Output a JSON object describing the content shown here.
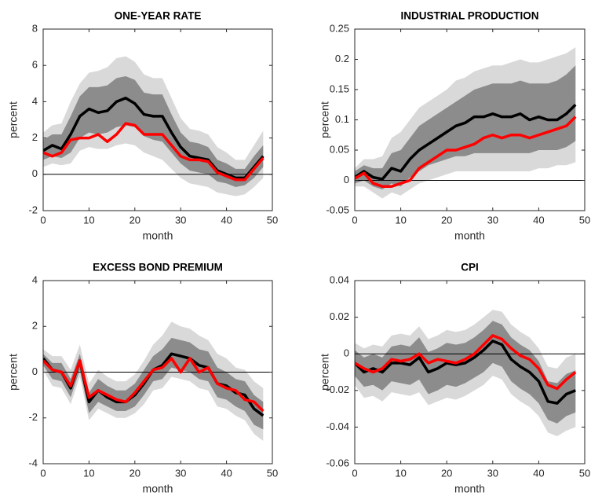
{
  "chart_data": [
    {
      "type": "line",
      "title": "ONE-YEAR RATE",
      "xlabel": "month",
      "ylabel": "percent",
      "x": [
        0,
        2,
        4,
        6,
        8,
        10,
        12,
        14,
        16,
        18,
        20,
        22,
        24,
        26,
        28,
        30,
        32,
        34,
        36,
        38,
        40,
        42,
        44,
        46,
        48
      ],
      "xlim": [
        0,
        50
      ],
      "xticks": [
        0,
        10,
        20,
        30,
        40,
        50
      ],
      "ylim": [
        -2,
        8
      ],
      "yticks": [
        -2,
        0,
        2,
        4,
        6,
        8
      ],
      "hline": 0,
      "bands": [
        {
          "color": "#d9d9d9",
          "lower": [
            0.4,
            0.6,
            0.5,
            0.6,
            1.3,
            1.5,
            1.4,
            1.4,
            1.6,
            1.7,
            1.6,
            1.2,
            1.0,
            0.8,
            0.3,
            -0.2,
            -0.5,
            -0.6,
            -0.7,
            -1.0,
            -1.1,
            -1.2,
            -1.1,
            -0.7,
            -0.2
          ],
          "upper": [
            2.3,
            2.7,
            2.8,
            4.0,
            5.0,
            5.6,
            5.7,
            5.9,
            6.4,
            6.5,
            6.2,
            5.5,
            5.3,
            5.3,
            4.2,
            3.1,
            2.5,
            2.4,
            2.2,
            1.5,
            1.2,
            0.8,
            0.8,
            1.6,
            2.4
          ]
        },
        {
          "color": "#8c8c8c",
          "lower": [
            0.8,
            1.0,
            0.9,
            1.2,
            2.0,
            2.3,
            2.2,
            2.3,
            2.6,
            2.7,
            2.6,
            2.1,
            1.9,
            1.8,
            1.2,
            0.6,
            0.2,
            0.1,
            0.0,
            -0.4,
            -0.5,
            -0.7,
            -0.6,
            -0.2,
            0.4
          ],
          "upper": [
            1.9,
            2.2,
            2.2,
            3.2,
            4.3,
            4.8,
            4.8,
            4.9,
            5.3,
            5.4,
            5.2,
            4.5,
            4.4,
            4.4,
            3.3,
            2.3,
            1.8,
            1.7,
            1.5,
            0.8,
            0.6,
            0.3,
            0.3,
            1.0,
            1.6
          ]
        }
      ],
      "series": [
        {
          "color": "#000000",
          "values": [
            1.3,
            1.6,
            1.4,
            2.2,
            3.2,
            3.6,
            3.4,
            3.5,
            4.0,
            4.2,
            3.9,
            3.3,
            3.2,
            3.2,
            2.3,
            1.5,
            1.0,
            0.9,
            0.8,
            0.2,
            0.0,
            -0.2,
            -0.2,
            0.4,
            1.0
          ]
        },
        {
          "color": "#ff0000",
          "values": [
            1.2,
            1.0,
            1.2,
            1.9,
            2.0,
            2.0,
            2.2,
            1.8,
            2.2,
            2.8,
            2.7,
            2.2,
            2.2,
            2.2,
            1.6,
            1.0,
            0.8,
            0.8,
            0.7,
            0.1,
            -0.1,
            -0.3,
            -0.3,
            0.3,
            0.9
          ]
        }
      ]
    },
    {
      "type": "line",
      "title": "INDUSTRIAL PRODUCTION",
      "xlabel": "month",
      "ylabel": "percent",
      "x": [
        0,
        2,
        4,
        6,
        8,
        10,
        12,
        14,
        16,
        18,
        20,
        22,
        24,
        26,
        28,
        30,
        32,
        34,
        36,
        38,
        40,
        42,
        44,
        46,
        48
      ],
      "xlim": [
        0,
        50
      ],
      "xticks": [
        0,
        10,
        20,
        30,
        40,
        50
      ],
      "ylim": [
        -0.05,
        0.25
      ],
      "yticks": [
        -0.05,
        0,
        0.05,
        0.1,
        0.15,
        0.2,
        0.25
      ],
      "hline": 0,
      "bands": [
        {
          "color": "#d9d9d9",
          "lower": [
            -0.01,
            -0.01,
            -0.02,
            -0.03,
            -0.02,
            -0.025,
            -0.015,
            -0.005,
            0.0,
            0.005,
            0.01,
            0.015,
            0.015,
            0.015,
            0.015,
            0.015,
            0.015,
            0.015,
            0.015,
            0.015,
            0.02,
            0.02,
            0.025,
            0.025,
            0.03
          ],
          "upper": [
            0.02,
            0.035,
            0.035,
            0.04,
            0.07,
            0.08,
            0.1,
            0.12,
            0.13,
            0.14,
            0.15,
            0.165,
            0.17,
            0.18,
            0.185,
            0.19,
            0.19,
            0.195,
            0.2,
            0.195,
            0.195,
            0.2,
            0.205,
            0.21,
            0.22
          ]
        },
        {
          "color": "#8c8c8c",
          "lower": [
            -0.005,
            0.0,
            -0.01,
            -0.015,
            -0.005,
            -0.01,
            0.005,
            0.015,
            0.025,
            0.03,
            0.035,
            0.04,
            0.04,
            0.045,
            0.045,
            0.045,
            0.045,
            0.045,
            0.045,
            0.045,
            0.05,
            0.05,
            0.05,
            0.055,
            0.065
          ],
          "upper": [
            0.015,
            0.025,
            0.02,
            0.02,
            0.045,
            0.05,
            0.07,
            0.09,
            0.1,
            0.11,
            0.12,
            0.13,
            0.14,
            0.15,
            0.155,
            0.16,
            0.16,
            0.16,
            0.165,
            0.16,
            0.16,
            0.16,
            0.165,
            0.175,
            0.19
          ]
        }
      ],
      "series": [
        {
          "color": "#000000",
          "values": [
            0.005,
            0.015,
            0.005,
            0.002,
            0.02,
            0.015,
            0.035,
            0.05,
            0.06,
            0.07,
            0.08,
            0.09,
            0.095,
            0.105,
            0.105,
            0.11,
            0.105,
            0.105,
            0.11,
            0.1,
            0.105,
            0.1,
            0.1,
            0.11,
            0.125
          ]
        },
        {
          "color": "#ff0000",
          "values": [
            0.003,
            0.012,
            -0.005,
            -0.01,
            -0.01,
            -0.005,
            0.0,
            0.02,
            0.03,
            0.04,
            0.05,
            0.05,
            0.055,
            0.06,
            0.07,
            0.075,
            0.07,
            0.075,
            0.075,
            0.07,
            0.075,
            0.08,
            0.085,
            0.09,
            0.105
          ]
        }
      ]
    },
    {
      "type": "line",
      "title": "EXCESS BOND PREMIUM",
      "xlabel": "month",
      "ylabel": "percent",
      "x": [
        0,
        2,
        4,
        6,
        8,
        10,
        12,
        14,
        16,
        18,
        20,
        22,
        24,
        26,
        28,
        30,
        32,
        34,
        36,
        38,
        40,
        42,
        44,
        46,
        48
      ],
      "xlim": [
        0,
        50
      ],
      "xticks": [
        0,
        10,
        20,
        30,
        40,
        50
      ],
      "ylim": [
        -4,
        4
      ],
      "yticks": [
        -4,
        -2,
        0,
        2,
        4
      ],
      "hline": 0,
      "bands": [
        {
          "color": "#d9d9d9",
          "lower": [
            0.1,
            -0.6,
            -0.7,
            -1.4,
            -0.2,
            -2.1,
            -1.6,
            -1.8,
            -2.0,
            -2.0,
            -1.8,
            -1.4,
            -0.8,
            -0.7,
            -0.2,
            -0.3,
            -0.4,
            -0.7,
            -0.8,
            -1.5,
            -1.6,
            -1.9,
            -2.1,
            -2.7,
            -3.0
          ],
          "upper": [
            1.0,
            0.7,
            0.7,
            0.1,
            1.2,
            -0.5,
            0.1,
            -0.2,
            -0.4,
            -0.4,
            -0.1,
            0.5,
            1.2,
            1.6,
            2.2,
            2.0,
            1.9,
            1.6,
            1.4,
            0.8,
            0.6,
            0.2,
            0.1,
            -0.4,
            -0.7
          ]
        },
        {
          "color": "#8c8c8c",
          "lower": [
            0.3,
            -0.3,
            -0.4,
            -1.1,
            0.1,
            -1.8,
            -1.3,
            -1.5,
            -1.7,
            -1.7,
            -1.5,
            -1.0,
            -0.4,
            -0.3,
            0.2,
            0.1,
            0.0,
            -0.3,
            -0.4,
            -1.1,
            -1.2,
            -1.5,
            -1.7,
            -2.3,
            -2.5
          ],
          "upper": [
            0.8,
            0.4,
            0.4,
            -0.3,
            0.8,
            -0.9,
            -0.3,
            -0.6,
            -0.8,
            -0.8,
            -0.5,
            0.1,
            0.7,
            1.0,
            1.5,
            1.4,
            1.3,
            1.0,
            0.9,
            0.2,
            0.0,
            -0.3,
            -0.4,
            -1.0,
            -1.3
          ]
        }
      ],
      "series": [
        {
          "color": "#000000",
          "values": [
            0.6,
            0.1,
            0.0,
            -0.7,
            0.5,
            -1.3,
            -0.8,
            -1.1,
            -1.3,
            -1.3,
            -1.0,
            -0.5,
            0.1,
            0.3,
            0.8,
            0.7,
            0.6,
            0.3,
            0.2,
            -0.5,
            -0.6,
            -0.9,
            -1.0,
            -1.6,
            -1.9
          ]
        },
        {
          "color": "#ff0000",
          "values": [
            0.5,
            0.1,
            0.0,
            -0.6,
            0.5,
            -1.1,
            -0.8,
            -1.0,
            -1.2,
            -1.3,
            -0.9,
            -0.4,
            0.1,
            0.2,
            0.6,
            0.0,
            0.6,
            0.0,
            0.2,
            -0.5,
            -0.7,
            -0.8,
            -1.2,
            -1.3,
            -1.7
          ]
        }
      ]
    },
    {
      "type": "line",
      "title": "CPI",
      "xlabel": "month",
      "ylabel": "percent",
      "x": [
        0,
        2,
        4,
        6,
        8,
        10,
        12,
        14,
        16,
        18,
        20,
        22,
        24,
        26,
        28,
        30,
        32,
        34,
        36,
        38,
        40,
        42,
        44,
        46,
        48
      ],
      "xlim": [
        0,
        50
      ],
      "xticks": [
        0,
        10,
        20,
        30,
        40,
        50
      ],
      "ylim": [
        -0.06,
        0.04
      ],
      "yticks": [
        -0.06,
        -0.04,
        -0.02,
        0,
        0.02,
        0.04
      ],
      "hline": 0,
      "bands": [
        {
          "color": "#d9d9d9",
          "lower": [
            -0.017,
            -0.024,
            -0.023,
            -0.026,
            -0.021,
            -0.022,
            -0.023,
            -0.021,
            -0.028,
            -0.026,
            -0.024,
            -0.025,
            -0.023,
            -0.02,
            -0.017,
            -0.012,
            -0.014,
            -0.022,
            -0.026,
            -0.029,
            -0.034,
            -0.043,
            -0.045,
            -0.042,
            -0.04
          ],
          "upper": [
            0.006,
            0.003,
            0.005,
            0.004,
            0.01,
            0.011,
            0.01,
            0.015,
            0.008,
            0.01,
            0.013,
            0.012,
            0.013,
            0.016,
            0.02,
            0.024,
            0.023,
            0.016,
            0.012,
            0.009,
            0.003,
            -0.007,
            -0.008,
            -0.002,
            0.0
          ]
        },
        {
          "color": "#8c8c8c",
          "lower": [
            -0.012,
            -0.018,
            -0.017,
            -0.02,
            -0.015,
            -0.016,
            -0.017,
            -0.014,
            -0.022,
            -0.02,
            -0.017,
            -0.018,
            -0.016,
            -0.013,
            -0.01,
            -0.005,
            -0.007,
            -0.015,
            -0.019,
            -0.022,
            -0.027,
            -0.036,
            -0.038,
            -0.034,
            -0.032
          ],
          "upper": [
            0.002,
            -0.002,
            0.0,
            -0.002,
            0.004,
            0.005,
            0.004,
            0.009,
            0.001,
            0.003,
            0.006,
            0.005,
            0.006,
            0.009,
            0.013,
            0.018,
            0.016,
            0.009,
            0.005,
            0.002,
            -0.004,
            -0.015,
            -0.016,
            -0.011,
            -0.009
          ]
        }
      ],
      "series": [
        {
          "color": "#000000",
          "values": [
            -0.005,
            -0.01,
            -0.008,
            -0.01,
            -0.005,
            -0.005,
            -0.006,
            -0.002,
            -0.01,
            -0.008,
            -0.005,
            -0.006,
            -0.005,
            -0.002,
            0.002,
            0.007,
            0.005,
            -0.003,
            -0.007,
            -0.01,
            -0.015,
            -0.026,
            -0.027,
            -0.022,
            -0.02
          ]
        },
        {
          "color": "#ff0000",
          "values": [
            -0.005,
            -0.008,
            -0.01,
            -0.008,
            -0.003,
            -0.004,
            -0.003,
            0.0,
            -0.005,
            -0.003,
            -0.004,
            -0.005,
            -0.003,
            0.0,
            0.005,
            0.01,
            0.008,
            0.003,
            -0.001,
            -0.003,
            -0.008,
            -0.017,
            -0.019,
            -0.014,
            -0.01
          ]
        }
      ]
    }
  ]
}
